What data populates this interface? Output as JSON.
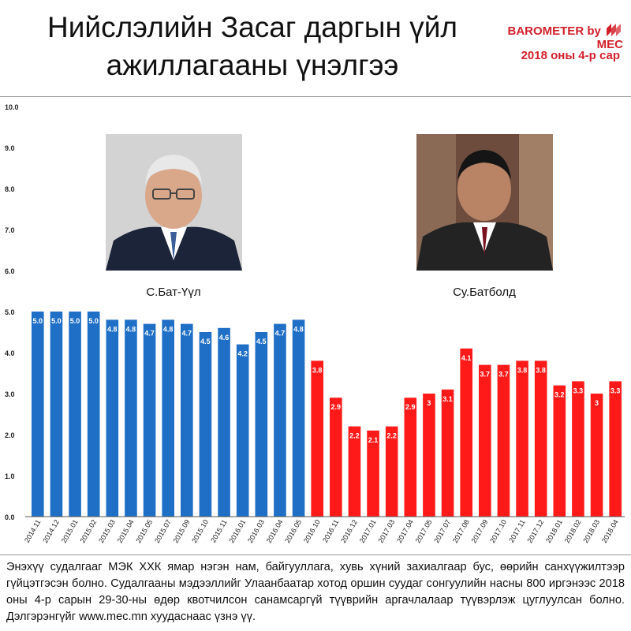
{
  "header": {
    "title_line1": "Нийслэлийн Засаг даргын үйл",
    "title_line2": "ажиллагааны үнэлгээ",
    "brand_prefix": "BAROMETER by",
    "brand_name": "MEC",
    "date": "2018 оны 4-р сар"
  },
  "people": [
    {
      "name": "С.Бат-Үүл"
    },
    {
      "name": "Су.Батболд"
    }
  ],
  "colors": {
    "series1": "#1f6fc6",
    "series2": "#ff1a1a",
    "brand": "#d2202b"
  },
  "chart_data": {
    "type": "bar",
    "ylim": [
      0,
      10
    ],
    "yticks": [
      "0.0",
      "1.0",
      "2.0",
      "3.0",
      "4.0",
      "5.0",
      "6.0",
      "7.0",
      "8.0",
      "9.0",
      "10.0"
    ],
    "grid": false,
    "series": [
      {
        "categories": [
          "2014.11",
          "2014.12",
          "2015.01",
          "2015.02",
          "2015.03",
          "2015.04",
          "2015.05",
          "2015.07",
          "2015.09",
          "2015.10",
          "2015.11",
          "2016.01",
          "2016.03",
          "2016.04",
          "2016.05"
        ],
        "values": [
          5.0,
          5.0,
          5.0,
          5.0,
          4.8,
          4.8,
          4.7,
          4.8,
          4.7,
          4.5,
          4.6,
          4.2,
          4.5,
          4.7,
          4.8
        ],
        "labels": [
          "5.0",
          "5.0",
          "5.0",
          "5.0",
          "4.8",
          "4.8",
          "4.7",
          "4.8",
          "4.7",
          "4.5",
          "4.6",
          "4.2",
          "4.5",
          "4.7",
          "4.8"
        ]
      },
      {
        "categories": [
          "2016.10",
          "2016.11",
          "2016.12",
          "2017.01",
          "2017.03",
          "2017.04",
          "2017.05",
          "2017.07",
          "2017.08",
          "2017.09",
          "2017.10",
          "2017.11",
          "2017.12",
          "2018.01",
          "2018.02",
          "2018.03",
          "2018.04"
        ],
        "values": [
          3.8,
          2.9,
          2.2,
          2.1,
          2.2,
          2.9,
          3.0,
          3.1,
          4.1,
          3.7,
          3.7,
          3.8,
          3.8,
          3.2,
          3.3,
          3.0,
          3.3
        ],
        "labels": [
          "3.8",
          "2.9",
          "2.2",
          "2.1",
          "2.2",
          "2.9",
          "3",
          "3.1",
          "4.1",
          "3.7",
          "3.7",
          "3.8",
          "3.8",
          "3.2",
          "3.3",
          "3",
          "3.3"
        ]
      }
    ]
  },
  "footer": {
    "text": "Энэхүү судалгааг МЭК ХХК ямар нэгэн нам, байгууллага, хувь хүний захиалгаар бус, өөрийн санхүүжилтээр гүйцэтгэсэн болно. Судалгааны мэдээллийг Улаанбаатар хотод оршин суудаг сонгуулийн насны 800 иргэнээс 2018 оны 4-р сарын 29-30-ны өдөр квотчилсон санамсаргүй түүврийн аргачлалаар түүвэрлэж цуглуулсан болно. Дэлгэрэнгүйг www.mec.mn хуудаснаас үзнэ үү."
  }
}
